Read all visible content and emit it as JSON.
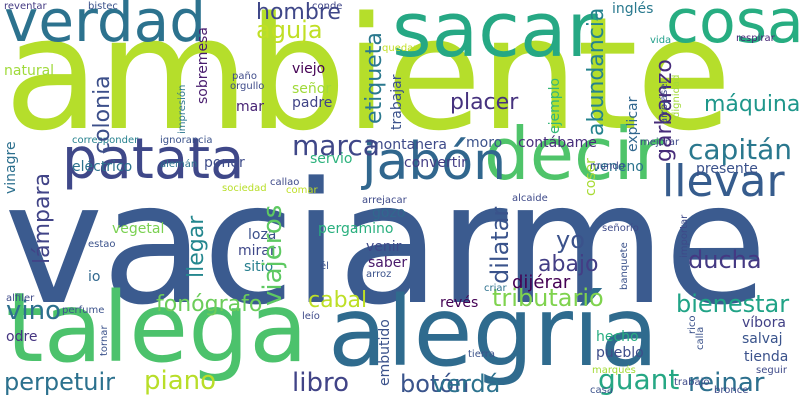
{
  "words": [
    {
      "text": "vaciarme",
      "color": "#3b5b8f"
    },
    {
      "text": "ambiente",
      "color": "#b5de2b"
    },
    {
      "text": "alegría",
      "color": "#2f6b8e"
    },
    {
      "text": "talega",
      "color": "#4cc26c"
    },
    {
      "text": "sacar",
      "color": "#26a884"
    },
    {
      "text": "decir",
      "color": "#4fc46a"
    },
    {
      "text": "patata",
      "color": "#3f4889"
    },
    {
      "text": "cosa",
      "color": "#27ad81"
    },
    {
      "text": "verdad",
      "color": "#2c728e"
    },
    {
      "text": "jabón",
      "color": "#31678e"
    },
    {
      "text": "llevar",
      "color": "#365c8d"
    },
    {
      "text": "tributario",
      "color": "#7fd34e"
    },
    {
      "text": "capitán",
      "color": "#2a788e"
    },
    {
      "text": "perpetuir",
      "color": "#2c718e"
    },
    {
      "text": "piano",
      "color": "#b8de29"
    },
    {
      "text": "libro",
      "color": "#414487"
    },
    {
      "text": "botón",
      "color": "#3a548c"
    },
    {
      "text": "verdá",
      "color": "#2c728e"
    },
    {
      "text": "guant",
      "color": "#26a784"
    },
    {
      "text": "reinar",
      "color": "#2d708e"
    },
    {
      "text": "marca",
      "color": "#3f4788"
    },
    {
      "text": "viajeros",
      "color": "#5ec962"
    },
    {
      "text": "colonia",
      "color": "#3c4f8a"
    },
    {
      "text": "lámpara",
      "color": "#414487"
    },
    {
      "text": "llegar",
      "color": "#24878e"
    },
    {
      "text": "fonógrafo",
      "color": "#6ccd5a"
    },
    {
      "text": "vino",
      "color": "#2d708e"
    },
    {
      "text": "cabal",
      "color": "#bddf26"
    },
    {
      "text": "bienestar",
      "color": "#20a386"
    },
    {
      "text": "dilatar",
      "color": "#3a538b"
    },
    {
      "text": "ducha",
      "color": "#443983"
    },
    {
      "text": "abundancia",
      "color": "#25838e"
    },
    {
      "text": "etiqueta",
      "color": "#2a788e"
    },
    {
      "text": "garbanzo",
      "color": "#472c7a"
    },
    {
      "text": "abajo",
      "color": "#433e85"
    },
    {
      "text": "yo",
      "color": "#3b528b"
    },
    {
      "text": "hombre",
      "color": "#3f4788"
    },
    {
      "text": "aguja",
      "color": "#c0df25"
    },
    {
      "text": "placer",
      "color": "#46327e"
    },
    {
      "text": "explicar",
      "color": "#31678e"
    },
    {
      "text": "máquina",
      "color": "#1f978b"
    },
    {
      "text": "moro",
      "color": "#3b528b"
    },
    {
      "text": "contábame",
      "color": "#472d7b"
    },
    {
      "text": "montanera",
      "color": "#3e4a89"
    },
    {
      "text": "servio",
      "color": "#2db27d"
    },
    {
      "text": "mar",
      "color": "#482475"
    },
    {
      "text": "padre",
      "color": "#414487"
    },
    {
      "text": "señor",
      "color": "#a0da39"
    },
    {
      "text": "viejo",
      "color": "#440154"
    },
    {
      "text": "natural",
      "color": "#9fda3a"
    },
    {
      "text": "vinagre",
      "color": "#2d708e"
    },
    {
      "text": "eléctrico",
      "color": "#2c728e"
    },
    {
      "text": "vegetal",
      "color": "#7ad151"
    },
    {
      "text": "poner",
      "color": "#3e4c8a"
    },
    {
      "text": "convertir",
      "color": "#433e85"
    },
    {
      "text": "veneno",
      "color": "#2c738e"
    },
    {
      "text": "presente",
      "color": "#3b528b"
    },
    {
      "text": "loza",
      "color": "#3b518b"
    },
    {
      "text": "pergamino",
      "color": "#2ab07f"
    },
    {
      "text": "mirar",
      "color": "#3f4889"
    },
    {
      "text": "sitio",
      "color": "#277f8e"
    },
    {
      "text": "venir",
      "color": "#3e4989"
    },
    {
      "text": "saber",
      "color": "#48186a"
    },
    {
      "text": "gozo",
      "color": "#31688e"
    },
    {
      "text": "dijérar",
      "color": "#440154"
    },
    {
      "text": "hecho",
      "color": "#27ad81"
    },
    {
      "text": "pueblo",
      "color": "#3d4d8a"
    },
    {
      "text": "revés",
      "color": "#440154"
    },
    {
      "text": "embutido",
      "color": "#3b528b"
    },
    {
      "text": "víbora",
      "color": "#424186"
    },
    {
      "text": "salvaj",
      "color": "#3a548c"
    },
    {
      "text": "tienda",
      "color": "#3b528b"
    },
    {
      "text": "odre",
      "color": "#453581"
    },
    {
      "text": "coser",
      "color": "#a8db34"
    },
    {
      "text": "ejemplo",
      "color": "#35b779"
    },
    {
      "text": "trabajar",
      "color": "#3b528b"
    },
    {
      "text": "sobremesa",
      "color": "#481c6e"
    },
    {
      "text": "inglés",
      "color": "#29798e"
    },
    {
      "text": "vida",
      "color": "#1f9e89"
    },
    {
      "text": "respirar",
      "color": "#482777"
    },
    {
      "text": "reventar",
      "color": "#443a83"
    },
    {
      "text": "bistec",
      "color": "#3b528b"
    },
    {
      "text": "conde",
      "color": "#404688"
    },
    {
      "text": "quedar",
      "color": "#c2df23"
    },
    {
      "text": "paño",
      "color": "#3e4a89"
    },
    {
      "text": "orgullo",
      "color": "#3e4a89"
    },
    {
      "text": "impresión",
      "color": "#2b758e"
    },
    {
      "text": "arrojásel",
      "color": "#3e4a89"
    },
    {
      "text": "dignidad",
      "color": "#a2da37"
    },
    {
      "text": "corresponder",
      "color": "#26818e"
    },
    {
      "text": "ignorancia",
      "color": "#3b528b"
    },
    {
      "text": "mejorar",
      "color": "#3e4a89"
    },
    {
      "text": "mundo",
      "color": "#3e4a89"
    },
    {
      "text": "alemán",
      "color": "#2c728e"
    },
    {
      "text": "sociedad",
      "color": "#b8de29"
    },
    {
      "text": "callao",
      "color": "#3e4a89"
    },
    {
      "text": "comar",
      "color": "#c0df25"
    },
    {
      "text": "estao",
      "color": "#3b528b"
    },
    {
      "text": "io",
      "color": "#31688e"
    },
    {
      "text": "perfume",
      "color": "#3b528b"
    },
    {
      "text": "alfiler",
      "color": "#3e4a89"
    },
    {
      "text": "leío",
      "color": "#3e4a89"
    },
    {
      "text": "criar",
      "color": "#2d718e"
    },
    {
      "text": "tornar",
      "color": "#3b528b"
    },
    {
      "text": "tierra",
      "color": "#3b528b"
    },
    {
      "text": "marqués",
      "color": "#a2da37"
    },
    {
      "text": "casa",
      "color": "#3b528b"
    },
    {
      "text": "trabajo",
      "color": "#3e4a89"
    },
    {
      "text": "bronce",
      "color": "#3e4a89"
    },
    {
      "text": "seguir",
      "color": "#3e4a89"
    },
    {
      "text": "rico",
      "color": "#3b528b"
    },
    {
      "text": "calla",
      "color": "#3b528b"
    },
    {
      "text": "banquete",
      "color": "#3b528b"
    },
    {
      "text": "importar",
      "color": "#3e4a89"
    },
    {
      "text": "señorío",
      "color": "#3e4a89"
    },
    {
      "text": "alcaide",
      "color": "#3e4a89"
    },
    {
      "text": "arrejacar",
      "color": "#3e4a89"
    },
    {
      "text": "arroz",
      "color": "#3b528b"
    },
    {
      "text": "él",
      "color": "#3b528b"
    }
  ]
}
